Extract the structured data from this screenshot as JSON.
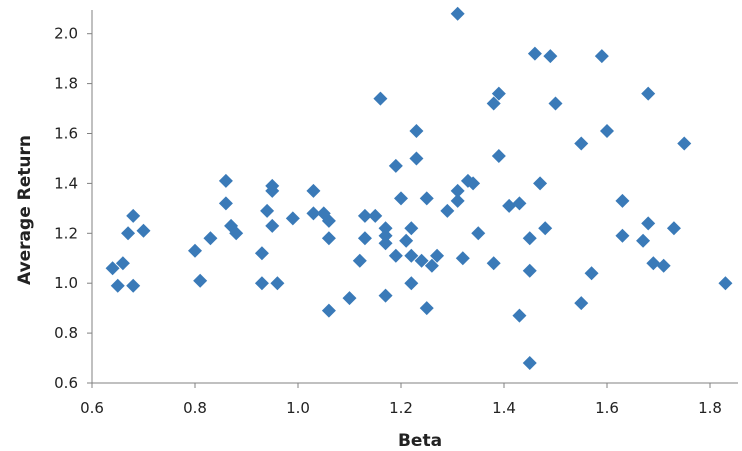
{
  "chart_data": {
    "type": "scatter",
    "xlabel": "Beta",
    "ylabel": "Average Return",
    "xlim": [
      0.6,
      1.85
    ],
    "ylim": [
      0.6,
      2.1
    ],
    "x_ticks": [
      "0.6",
      "0.8",
      "1.0",
      "1.2",
      "1.4",
      "1.6",
      "1.8"
    ],
    "y_ticks": [
      "0.6",
      "0.8",
      "1.0",
      "1.2",
      "1.4",
      "1.6",
      "1.8",
      "2.0"
    ],
    "grid": false,
    "legend": "none",
    "marker": "diamond",
    "marker_color": "#3a7ab8",
    "axis_color": "#808080",
    "series": [
      {
        "points": [
          [
            0.64,
            1.06
          ],
          [
            0.65,
            0.99
          ],
          [
            0.66,
            1.08
          ],
          [
            0.67,
            1.2
          ],
          [
            0.68,
            0.99
          ],
          [
            0.68,
            1.27
          ],
          [
            0.7,
            1.21
          ],
          [
            0.8,
            1.13
          ],
          [
            0.81,
            1.01
          ],
          [
            0.83,
            1.18
          ],
          [
            0.86,
            1.41
          ],
          [
            0.86,
            1.32
          ],
          [
            0.87,
            1.23
          ],
          [
            0.88,
            1.2
          ],
          [
            0.93,
            1.12
          ],
          [
            0.93,
            1.0
          ],
          [
            0.94,
            1.29
          ],
          [
            0.95,
            1.37
          ],
          [
            0.95,
            1.39
          ],
          [
            0.95,
            1.23
          ],
          [
            0.96,
            1.0
          ],
          [
            0.99,
            1.26
          ],
          [
            1.03,
            1.28
          ],
          [
            1.03,
            1.37
          ],
          [
            1.05,
            1.28
          ],
          [
            1.06,
            1.18
          ],
          [
            1.06,
            1.25
          ],
          [
            1.06,
            0.89
          ],
          [
            1.1,
            0.94
          ],
          [
            1.12,
            1.09
          ],
          [
            1.13,
            1.27
          ],
          [
            1.13,
            1.18
          ],
          [
            1.15,
            1.27
          ],
          [
            1.16,
            1.74
          ],
          [
            1.17,
            1.16
          ],
          [
            1.17,
            1.22
          ],
          [
            1.17,
            0.95
          ],
          [
            1.17,
            1.19
          ],
          [
            1.19,
            1.47
          ],
          [
            1.19,
            1.11
          ],
          [
            1.2,
            1.34
          ],
          [
            1.21,
            1.17
          ],
          [
            1.22,
            1.11
          ],
          [
            1.22,
            1.22
          ],
          [
            1.22,
            1.0
          ],
          [
            1.23,
            1.61
          ],
          [
            1.23,
            1.5
          ],
          [
            1.24,
            1.09
          ],
          [
            1.25,
            0.9
          ],
          [
            1.25,
            1.34
          ],
          [
            1.26,
            1.07
          ],
          [
            1.27,
            1.11
          ],
          [
            1.29,
            1.29
          ],
          [
            1.31,
            2.08
          ],
          [
            1.31,
            1.37
          ],
          [
            1.31,
            1.33
          ],
          [
            1.32,
            1.1
          ],
          [
            1.33,
            1.41
          ],
          [
            1.34,
            1.4
          ],
          [
            1.35,
            1.2
          ],
          [
            1.38,
            1.72
          ],
          [
            1.38,
            1.08
          ],
          [
            1.39,
            1.76
          ],
          [
            1.39,
            1.51
          ],
          [
            1.41,
            1.31
          ],
          [
            1.43,
            1.32
          ],
          [
            1.43,
            0.87
          ],
          [
            1.45,
            1.18
          ],
          [
            1.45,
            0.68
          ],
          [
            1.45,
            1.05
          ],
          [
            1.46,
            1.92
          ],
          [
            1.47,
            1.4
          ],
          [
            1.48,
            1.22
          ],
          [
            1.49,
            1.91
          ],
          [
            1.5,
            1.72
          ],
          [
            1.55,
            1.56
          ],
          [
            1.55,
            0.92
          ],
          [
            1.57,
            1.04
          ],
          [
            1.59,
            1.91
          ],
          [
            1.6,
            1.61
          ],
          [
            1.63,
            1.33
          ],
          [
            1.63,
            1.19
          ],
          [
            1.67,
            1.17
          ],
          [
            1.68,
            1.76
          ],
          [
            1.68,
            1.24
          ],
          [
            1.69,
            1.08
          ],
          [
            1.71,
            1.07
          ],
          [
            1.73,
            1.22
          ],
          [
            1.75,
            1.56
          ],
          [
            1.83,
            1.0
          ]
        ]
      }
    ]
  }
}
